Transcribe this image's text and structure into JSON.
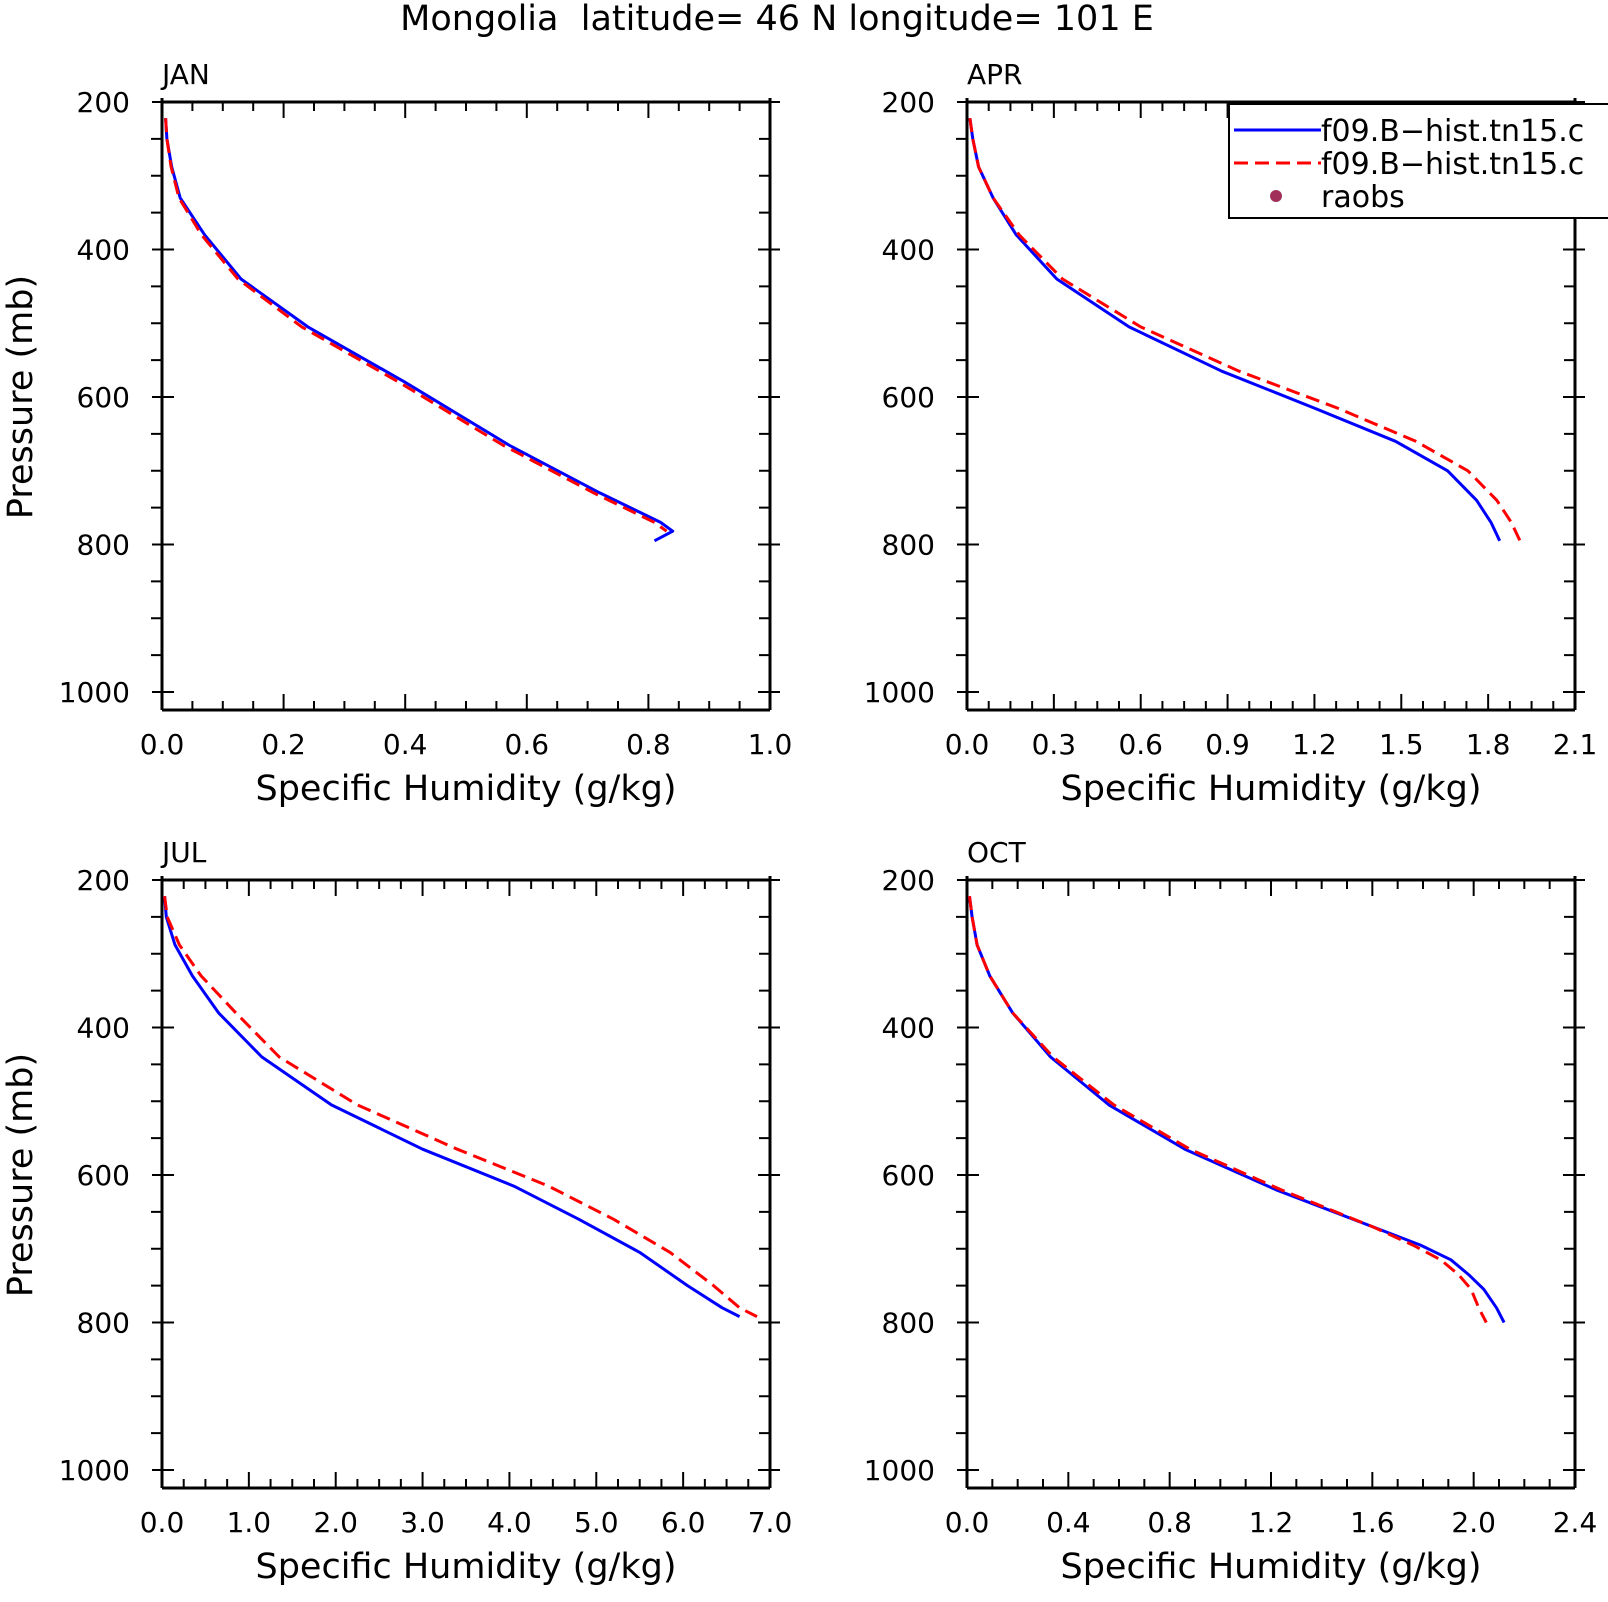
{
  "title": "Mongolia  latitude= 46 N longitude= 101 E",
  "colors": {
    "model1": "#0000ff",
    "model2": "#ff0000",
    "raobs": "#a0305a",
    "axis": "#000000"
  },
  "legend": {
    "items": [
      {
        "label": "f09.B−hist.tn15.c",
        "style": "solid-blue"
      },
      {
        "label": "f09.B−hist.tn15.c",
        "style": "dashed-red"
      },
      {
        "label": "raobs",
        "style": "dot"
      }
    ]
  },
  "chart_data": [
    {
      "type": "line",
      "panel_label": "JAN",
      "xlabel": "Specific Humidity (g/kg)",
      "ylabel": "Pressure (mb)",
      "xlim": [
        0.0,
        1.0
      ],
      "ylim": [
        200,
        1000
      ],
      "y_inverted": true,
      "xticks": [
        "0.0",
        "0.2",
        "0.4",
        "0.6",
        "0.8",
        "1.0"
      ],
      "yticks": [
        "200",
        "400",
        "600",
        "800",
        "1000"
      ],
      "series": [
        {
          "name": "f09.B−hist.tn15.c",
          "x": [
            0.006,
            0.008,
            0.016,
            0.03,
            0.07,
            0.13,
            0.24,
            0.4,
            0.57,
            0.72,
            0.82,
            0.84,
            0.81
          ],
          "y": [
            222,
            250,
            288,
            330,
            380,
            440,
            505,
            580,
            665,
            730,
            770,
            782,
            795
          ]
        },
        {
          "name": "f09.B−hist.tn15.c",
          "x": [
            0.006,
            0.008,
            0.015,
            0.028,
            0.065,
            0.125,
            0.23,
            0.39,
            0.56,
            0.71,
            0.81,
            0.83
          ],
          "y": [
            222,
            250,
            288,
            330,
            380,
            440,
            505,
            580,
            665,
            730,
            770,
            782
          ]
        }
      ]
    },
    {
      "type": "line",
      "panel_label": "APR",
      "xlabel": "Specific Humidity (g/kg)",
      "ylabel": "",
      "xlim": [
        0.0,
        2.1
      ],
      "ylim": [
        200,
        1000
      ],
      "y_inverted": true,
      "xticks": [
        "0.0",
        "0.3",
        "0.6",
        "0.9",
        "1.2",
        "1.5",
        "1.8",
        "2.1"
      ],
      "yticks": [
        "200",
        "400",
        "600",
        "800",
        "1000"
      ],
      "series": [
        {
          "name": "f09.B−hist.tn15.c",
          "x": [
            0.01,
            0.02,
            0.04,
            0.09,
            0.17,
            0.31,
            0.56,
            0.88,
            1.2,
            1.48,
            1.66,
            1.76,
            1.81,
            1.84
          ],
          "y": [
            222,
            250,
            288,
            330,
            380,
            440,
            505,
            565,
            615,
            660,
            700,
            740,
            770,
            795
          ]
        },
        {
          "name": "f09.B−hist.tn15.c",
          "x": [
            0.01,
            0.02,
            0.04,
            0.09,
            0.18,
            0.33,
            0.6,
            0.94,
            1.28,
            1.55,
            1.73,
            1.83,
            1.88,
            1.91
          ],
          "y": [
            222,
            250,
            288,
            330,
            380,
            440,
            505,
            565,
            615,
            660,
            700,
            740,
            770,
            795
          ]
        }
      ]
    },
    {
      "type": "line",
      "panel_label": "JUL",
      "xlabel": "Specific Humidity (g/kg)",
      "ylabel": "Pressure (mb)",
      "xlim": [
        0.0,
        7.0
      ],
      "ylim": [
        200,
        1000
      ],
      "y_inverted": true,
      "xticks": [
        "0.0",
        "1.0",
        "2.0",
        "3.0",
        "4.0",
        "5.0",
        "6.0",
        "7.0"
      ],
      "yticks": [
        "200",
        "400",
        "600",
        "800",
        "1000"
      ],
      "series": [
        {
          "name": "f09.B−hist.tn15.c",
          "x": [
            0.03,
            0.05,
            0.15,
            0.35,
            0.65,
            1.15,
            1.95,
            3.0,
            4.05,
            4.8,
            5.5,
            6.05,
            6.45,
            6.65
          ],
          "y": [
            222,
            250,
            288,
            330,
            380,
            440,
            505,
            565,
            615,
            660,
            705,
            750,
            780,
            792
          ]
        },
        {
          "name": "f09.B−hist.tn15.c",
          "x": [
            0.03,
            0.06,
            0.2,
            0.45,
            0.85,
            1.35,
            2.25,
            3.4,
            4.45,
            5.2,
            5.85,
            6.35,
            6.65,
            6.85
          ],
          "y": [
            222,
            250,
            288,
            330,
            380,
            440,
            505,
            565,
            615,
            660,
            705,
            750,
            780,
            792
          ]
        }
      ]
    },
    {
      "type": "line",
      "panel_label": "OCT",
      "xlabel": "Specific Humidity (g/kg)",
      "ylabel": "",
      "xlim": [
        0.0,
        2.4
      ],
      "ylim": [
        200,
        1000
      ],
      "y_inverted": true,
      "xticks": [
        "0.0",
        "0.4",
        "0.8",
        "1.2",
        "1.6",
        "2.0",
        "2.4"
      ],
      "yticks": [
        "200",
        "400",
        "600",
        "800",
        "1000"
      ],
      "series": [
        {
          "name": "f09.B−hist.tn15.c",
          "x": [
            0.01,
            0.02,
            0.04,
            0.09,
            0.18,
            0.33,
            0.56,
            0.86,
            1.22,
            1.6,
            1.79,
            1.91,
            1.98,
            2.04,
            2.09,
            2.12
          ],
          "y": [
            222,
            250,
            288,
            330,
            380,
            440,
            505,
            565,
            620,
            670,
            695,
            715,
            735,
            755,
            780,
            800
          ]
        },
        {
          "name": "f09.B−hist.tn15.c",
          "x": [
            0.01,
            0.02,
            0.04,
            0.09,
            0.18,
            0.34,
            0.58,
            0.88,
            1.24,
            1.6,
            1.76,
            1.87,
            1.94,
            1.99,
            2.02,
            2.05
          ],
          "y": [
            222,
            250,
            288,
            330,
            380,
            440,
            505,
            565,
            620,
            670,
            695,
            715,
            735,
            755,
            780,
            800
          ]
        }
      ]
    }
  ]
}
